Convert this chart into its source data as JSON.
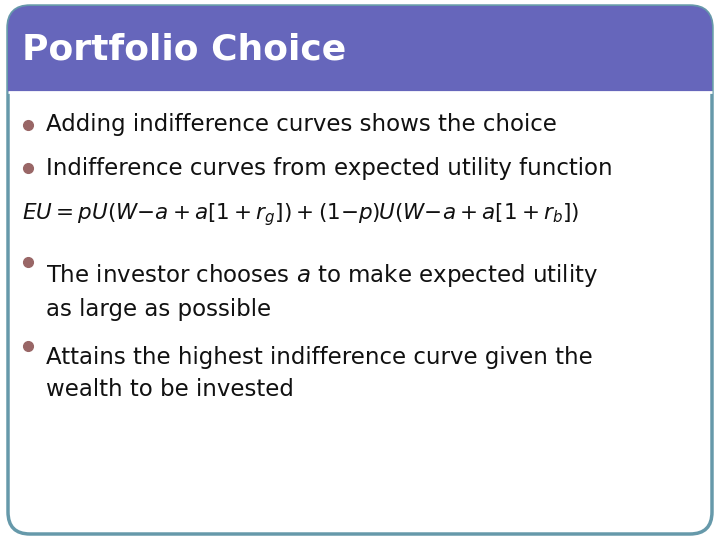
{
  "title": "Portfolio Choice",
  "title_bg_color": "#6666BB",
  "title_text_color": "#FFFFFF",
  "slide_bg_color": "#FFFFFF",
  "border_color": "#6699AA",
  "bullet_color": "#996666",
  "bullet_points": [
    "Adding indifference curves shows the choice",
    "Indifference curves from expected utility function"
  ],
  "bullet_points2": [
    "The investor chooses $a$ to make expected utility\nas large as possible",
    "Attains the highest indifference curve given the\nwealth to be invested"
  ],
  "title_fontsize": 26,
  "body_fontsize": 16.5,
  "eq_fontsize": 15.5,
  "fig_width": 7.2,
  "fig_height": 5.4,
  "dpi": 100
}
